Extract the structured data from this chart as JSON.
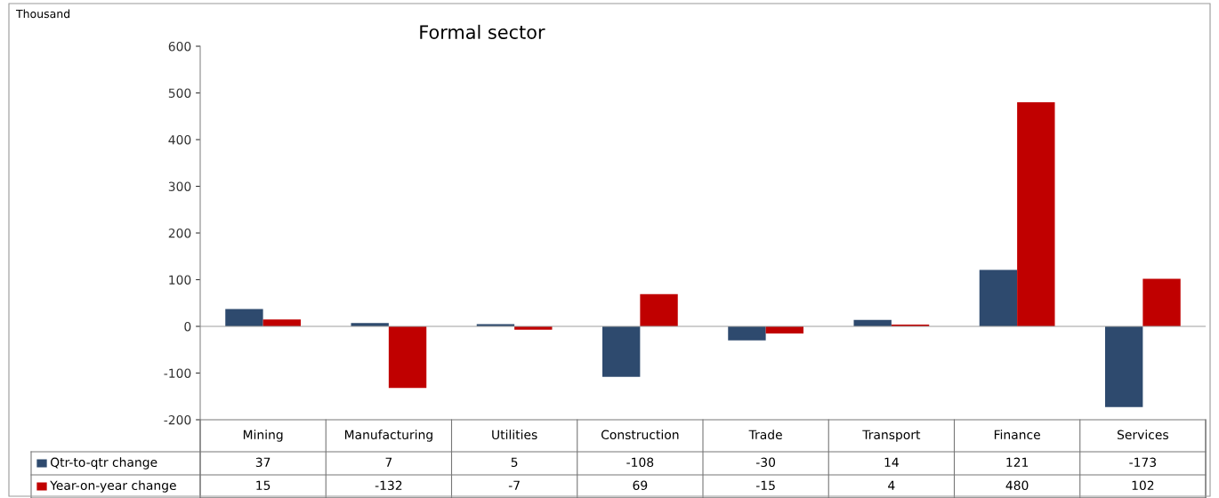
{
  "chart_data": {
    "type": "bar",
    "title": "Formal sector",
    "annotations": [
      "Thousand"
    ],
    "categories": [
      "Mining",
      "Manufacturing",
      "Utilities",
      "Construction",
      "Trade",
      "Transport",
      "Finance",
      "Services"
    ],
    "series": [
      {
        "name": "Qtr-to-qtr change",
        "color": "#2e4a6e",
        "values": [
          37,
          7,
          5,
          -108,
          -30,
          14,
          121,
          -173
        ]
      },
      {
        "name": "Year-on-year change",
        "color": "#c00000",
        "values": [
          15,
          -132,
          -7,
          69,
          -15,
          4,
          480,
          102
        ]
      }
    ],
    "ylim": [
      -200,
      600
    ],
    "yticks": [
      -200,
      -100,
      0,
      100,
      200,
      300,
      400,
      500,
      600
    ],
    "ref_lines": [
      {
        "axis": "y",
        "value": 0,
        "color": "#a0a0a0"
      }
    ],
    "data_labels": true,
    "grid": false,
    "legend": "bottom left"
  }
}
